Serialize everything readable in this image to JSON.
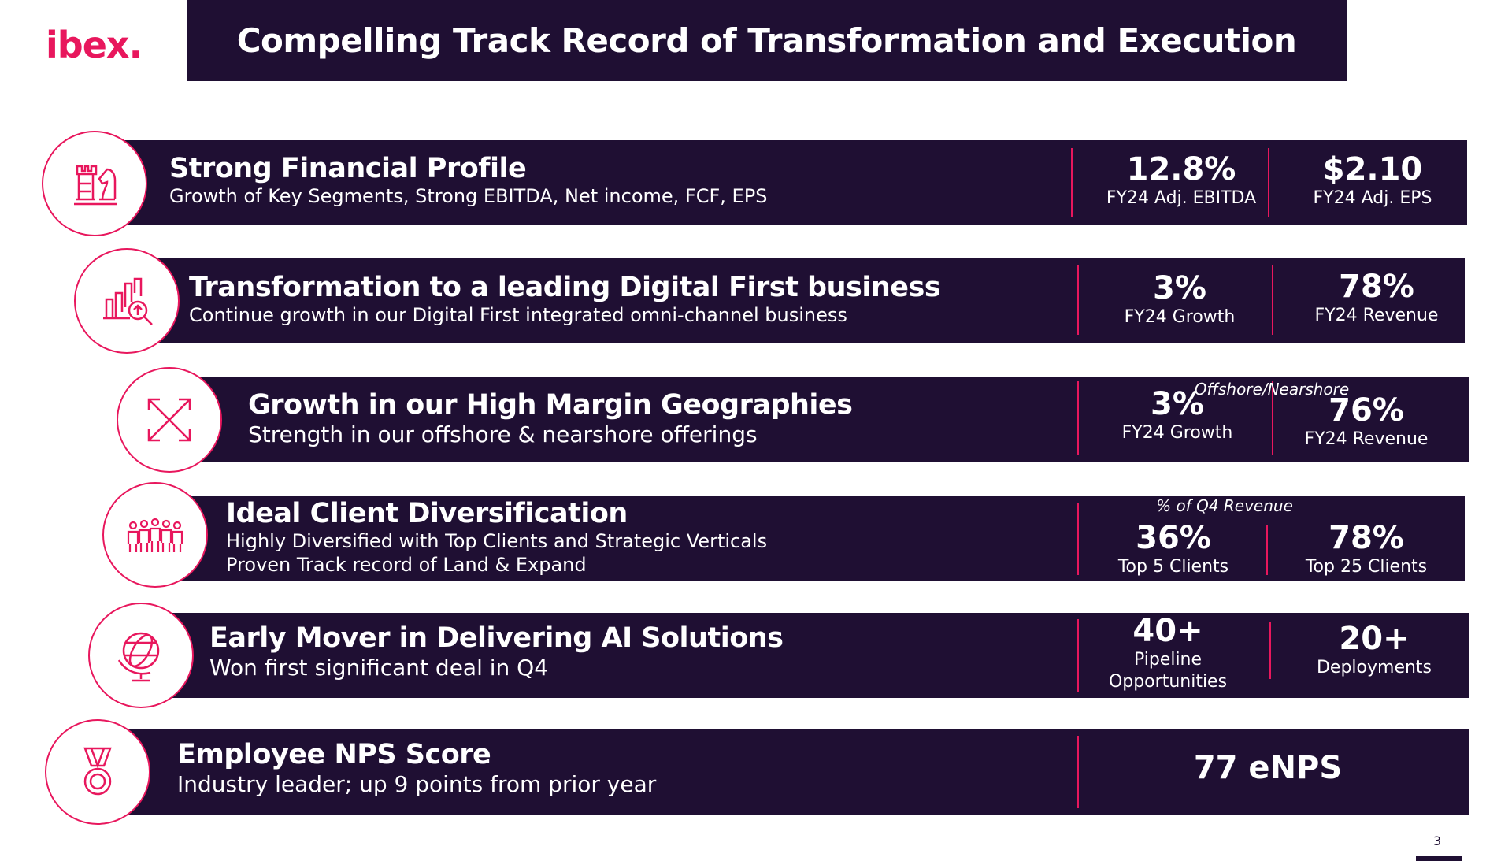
{
  "brand": {
    "logo_text": "ibex.",
    "accent": "#e8175d",
    "dark": "#1f0f33"
  },
  "header": {
    "title": "Compelling Track Record of Transformation and Execution"
  },
  "rows": [
    {
      "icon": "chess-icon",
      "heading": "Strong Financial Profile",
      "sub": [
        "Growth of Key Segments, Strong EBITDA, Net income, FCF, EPS"
      ],
      "metrics": [
        {
          "value": "12.8%",
          "label": "FY24 Adj. EBITDA"
        },
        {
          "value": "$2.10",
          "label": "FY24 Adj. EPS"
        }
      ]
    },
    {
      "icon": "growth-chart-icon",
      "heading": "Transformation to a leading Digital First business",
      "sub": [
        "Continue growth in our Digital First integrated omni-channel business"
      ],
      "metrics": [
        {
          "value": "3%",
          "label": "FY24 Growth"
        },
        {
          "value": "78%",
          "label": "FY24 Revenue"
        }
      ]
    },
    {
      "icon": "expand-arrows-icon",
      "heading": "Growth in our High Margin Geographies",
      "sub": [
        "Strength in our offshore & nearshore offerings"
      ],
      "note": "Offshore/Nearshore",
      "metrics": [
        {
          "value": "3%",
          "label": "FY24 Growth"
        },
        {
          "value": "76%",
          "label": "FY24 Revenue"
        }
      ]
    },
    {
      "icon": "people-group-icon",
      "heading": "Ideal Client Diversification",
      "sub": [
        "Highly Diversified with Top Clients and Strategic Verticals",
        "Proven Track record of Land & Expand"
      ],
      "note": "% of Q4 Revenue",
      "metrics": [
        {
          "value": "36%",
          "label": "Top 5 Clients"
        },
        {
          "value": "78%",
          "label": "Top 25 Clients"
        }
      ]
    },
    {
      "icon": "globe-icon",
      "heading": "Early Mover in Delivering AI Solutions",
      "sub": [
        "Won first significant deal in Q4"
      ],
      "metrics": [
        {
          "value": "40+",
          "label": "Pipeline",
          "label2": "Opportunities"
        },
        {
          "value": "20+",
          "label": "Deployments"
        }
      ]
    },
    {
      "icon": "medal-icon",
      "heading": "Employee NPS Score",
      "sub": [
        "Industry leader; up 9 points from prior year"
      ],
      "metrics": [
        {
          "value": "77 eNPS"
        }
      ]
    }
  ],
  "footer": {
    "page_number": "3"
  }
}
